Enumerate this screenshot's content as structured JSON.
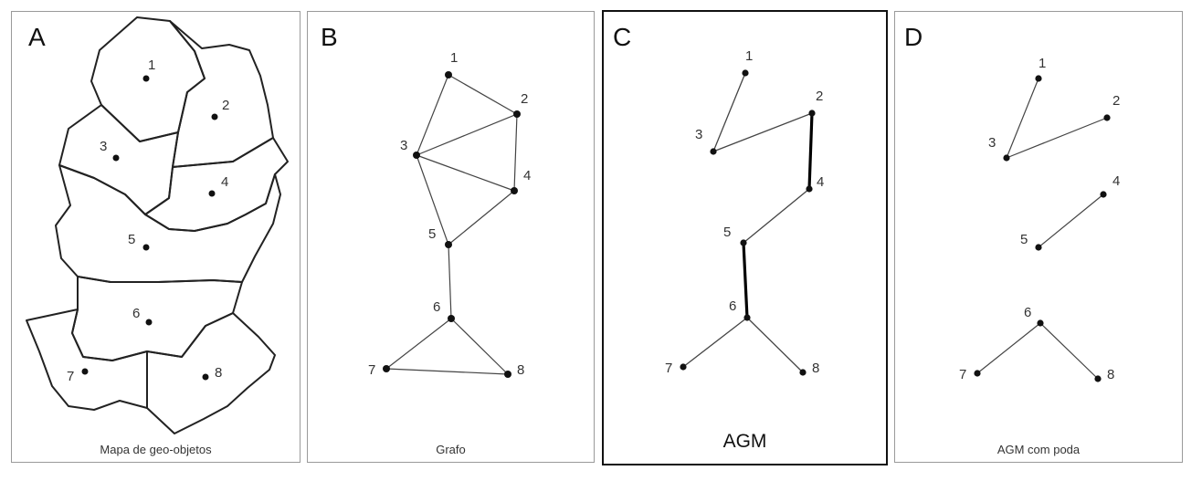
{
  "panels": [
    {
      "letter": "A",
      "caption": "Mapa de geo-objetos"
    },
    {
      "letter": "B",
      "caption": "Grafo"
    },
    {
      "letter": "C",
      "caption": "AGM"
    },
    {
      "letter": "D",
      "caption": "AGM com poda"
    }
  ],
  "nodes": [
    "1",
    "2",
    "3",
    "4",
    "5",
    "6",
    "7",
    "8"
  ],
  "graph_edges": [
    [
      "1",
      "2"
    ],
    [
      "1",
      "3"
    ],
    [
      "2",
      "3"
    ],
    [
      "2",
      "4"
    ],
    [
      "3",
      "4"
    ],
    [
      "3",
      "5"
    ],
    [
      "4",
      "5"
    ],
    [
      "5",
      "6"
    ],
    [
      "6",
      "7"
    ],
    [
      "6",
      "8"
    ],
    [
      "7",
      "8"
    ]
  ],
  "mst_edges": [
    {
      "from": "1",
      "to": "3",
      "emphasis": false
    },
    {
      "from": "3",
      "to": "2",
      "emphasis": false
    },
    {
      "from": "2",
      "to": "4",
      "emphasis": true
    },
    {
      "from": "4",
      "to": "5",
      "emphasis": false
    },
    {
      "from": "5",
      "to": "6",
      "emphasis": true
    },
    {
      "from": "6",
      "to": "7",
      "emphasis": false
    },
    {
      "from": "6",
      "to": "8",
      "emphasis": false
    }
  ],
  "pruned_edges": [
    [
      "1",
      "3"
    ],
    [
      "2",
      "3"
    ],
    [
      "4",
      "5"
    ],
    [
      "6",
      "7"
    ],
    [
      "6",
      "8"
    ]
  ]
}
